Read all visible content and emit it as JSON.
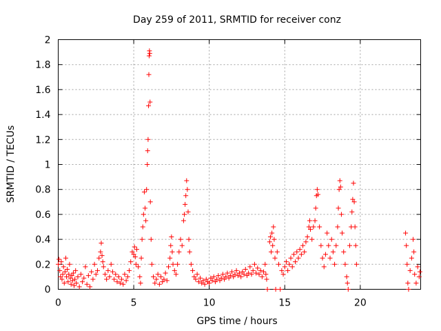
{
  "chart_data": {
    "type": "scatter",
    "title": "Day 259 of 2011, SRMTID for receiver conz",
    "xlabel": "GPS time / hours",
    "ylabel": "SRMTID / TECUs",
    "xlim": [
      0,
      24
    ],
    "ylim": [
      0,
      2
    ],
    "xticks": [
      0,
      5,
      10,
      15,
      20
    ],
    "xtick_labels": [
      "0",
      "5",
      "10",
      "15",
      "20"
    ],
    "yticks": [
      0,
      0.2,
      0.4,
      0.6,
      0.8,
      1,
      1.2,
      1.4,
      1.6,
      1.8,
      2
    ],
    "ytick_labels": [
      "0",
      "0.2",
      "0.4",
      "0.6",
      "0.8",
      "1",
      "1.2",
      "1.4",
      "1.6",
      "1.8",
      "2"
    ],
    "grid": true,
    "marker": "+",
    "color": "#ff0000",
    "series": [
      {
        "name": "SRMTID",
        "points": [
          [
            0.0,
            0.2
          ],
          [
            0.05,
            0.24
          ],
          [
            0.1,
            0.15
          ],
          [
            0.15,
            0.1
          ],
          [
            0.2,
            0.22
          ],
          [
            0.25,
            0.08
          ],
          [
            0.3,
            0.12
          ],
          [
            0.35,
            0.18
          ],
          [
            0.4,
            0.05
          ],
          [
            0.45,
            0.14
          ],
          [
            0.5,
            0.25
          ],
          [
            0.55,
            0.1
          ],
          [
            0.6,
            0.16
          ],
          [
            0.65,
            0.06
          ],
          [
            0.7,
            0.12
          ],
          [
            0.75,
            0.2
          ],
          [
            0.8,
            0.09
          ],
          [
            0.85,
            0.04
          ],
          [
            0.9,
            0.11
          ],
          [
            0.95,
            0.07
          ],
          [
            1.0,
            0.13
          ],
          [
            1.05,
            0.03
          ],
          [
            1.1,
            0.08
          ],
          [
            1.15,
            0.15
          ],
          [
            1.2,
            0.05
          ],
          [
            1.3,
            0.1
          ],
          [
            1.4,
            0.02
          ],
          [
            1.5,
            0.12
          ],
          [
            1.6,
            0.06
          ],
          [
            1.7,
            0.09
          ],
          [
            1.8,
            0.18
          ],
          [
            1.9,
            0.04
          ],
          [
            2.0,
            0.11
          ],
          [
            2.1,
            0.02
          ],
          [
            2.2,
            0.14
          ],
          [
            2.3,
            0.08
          ],
          [
            2.4,
            0.2
          ],
          [
            2.5,
            0.12
          ],
          [
            2.6,
            0.15
          ],
          [
            2.7,
            0.25
          ],
          [
            2.8,
            0.3
          ],
          [
            2.85,
            0.37
          ],
          [
            2.9,
            0.27
          ],
          [
            2.95,
            0.22
          ],
          [
            3.0,
            0.18
          ],
          [
            3.1,
            0.12
          ],
          [
            3.2,
            0.08
          ],
          [
            3.3,
            0.15
          ],
          [
            3.4,
            0.1
          ],
          [
            3.5,
            0.2
          ],
          [
            3.6,
            0.14
          ],
          [
            3.7,
            0.08
          ],
          [
            3.8,
            0.12
          ],
          [
            3.9,
            0.06
          ],
          [
            4.0,
            0.1
          ],
          [
            4.1,
            0.05
          ],
          [
            4.2,
            0.08
          ],
          [
            4.3,
            0.04
          ],
          [
            4.4,
            0.12
          ],
          [
            4.5,
            0.07
          ],
          [
            4.6,
            0.1
          ],
          [
            4.7,
            0.15
          ],
          [
            4.8,
            0.22
          ],
          [
            4.9,
            0.3
          ],
          [
            5.0,
            0.28
          ],
          [
            5.05,
            0.34
          ],
          [
            5.1,
            0.26
          ],
          [
            5.15,
            0.2
          ],
          [
            5.2,
            0.32
          ],
          [
            5.3,
            0.18
          ],
          [
            5.4,
            0.1
          ],
          [
            5.45,
            0.05
          ],
          [
            5.5,
            0.25
          ],
          [
            5.55,
            0.4
          ],
          [
            5.6,
            0.5
          ],
          [
            5.65,
            0.6
          ],
          [
            5.7,
            0.78
          ],
          [
            5.75,
            0.65
          ],
          [
            5.8,
            0.55
          ],
          [
            5.85,
            0.8
          ],
          [
            5.9,
            1.0
          ],
          [
            5.92,
            1.11
          ],
          [
            5.95,
            1.2
          ],
          [
            5.98,
            1.47
          ],
          [
            6.0,
            1.72
          ],
          [
            6.02,
            1.87
          ],
          [
            6.04,
            1.91
          ],
          [
            6.06,
            1.89
          ],
          [
            6.08,
            1.5
          ],
          [
            6.1,
            0.7
          ],
          [
            6.15,
            0.4
          ],
          [
            6.2,
            0.2
          ],
          [
            6.3,
            0.1
          ],
          [
            6.4,
            0.05
          ],
          [
            6.5,
            0.08
          ],
          [
            6.6,
            0.12
          ],
          [
            6.7,
            0.04
          ],
          [
            6.8,
            0.1
          ],
          [
            6.9,
            0.06
          ],
          [
            7.0,
            0.08
          ],
          [
            7.1,
            0.13
          ],
          [
            7.2,
            0.07
          ],
          [
            7.3,
            0.18
          ],
          [
            7.4,
            0.25
          ],
          [
            7.45,
            0.35
          ],
          [
            7.5,
            0.42
          ],
          [
            7.55,
            0.3
          ],
          [
            7.6,
            0.2
          ],
          [
            7.7,
            0.15
          ],
          [
            7.8,
            0.12
          ],
          [
            7.9,
            0.2
          ],
          [
            8.0,
            0.3
          ],
          [
            8.1,
            0.4
          ],
          [
            8.2,
            0.35
          ],
          [
            8.3,
            0.55
          ],
          [
            8.35,
            0.6
          ],
          [
            8.4,
            0.68
          ],
          [
            8.45,
            0.75
          ],
          [
            8.5,
            0.87
          ],
          [
            8.55,
            0.8
          ],
          [
            8.6,
            0.62
          ],
          [
            8.65,
            0.4
          ],
          [
            8.7,
            0.3
          ],
          [
            8.8,
            0.2
          ],
          [
            8.9,
            0.15
          ],
          [
            9.0,
            0.1
          ],
          [
            9.1,
            0.08
          ],
          [
            9.2,
            0.12
          ],
          [
            9.3,
            0.06
          ],
          [
            9.4,
            0.09
          ],
          [
            9.5,
            0.05
          ],
          [
            9.6,
            0.07
          ],
          [
            9.7,
            0.04
          ],
          [
            9.8,
            0.08
          ],
          [
            9.9,
            0.06
          ],
          [
            10.0,
            0.05
          ],
          [
            10.1,
            0.09
          ],
          [
            10.2,
            0.07
          ],
          [
            10.3,
            0.1
          ],
          [
            10.4,
            0.06
          ],
          [
            10.5,
            0.08
          ],
          [
            10.6,
            0.11
          ],
          [
            10.7,
            0.07
          ],
          [
            10.8,
            0.09
          ],
          [
            10.9,
            0.12
          ],
          [
            11.0,
            0.08
          ],
          [
            11.1,
            0.1
          ],
          [
            11.2,
            0.13
          ],
          [
            11.3,
            0.09
          ],
          [
            11.4,
            0.11
          ],
          [
            11.5,
            0.14
          ],
          [
            11.6,
            0.1
          ],
          [
            11.7,
            0.12
          ],
          [
            11.8,
            0.15
          ],
          [
            11.9,
            0.11
          ],
          [
            12.0,
            0.13
          ],
          [
            12.1,
            0.1
          ],
          [
            12.2,
            0.14
          ],
          [
            12.3,
            0.12
          ],
          [
            12.4,
            0.16
          ],
          [
            12.5,
            0.11
          ],
          [
            12.6,
            0.13
          ],
          [
            12.7,
            0.18
          ],
          [
            12.8,
            0.12
          ],
          [
            12.9,
            0.15
          ],
          [
            13.0,
            0.2
          ],
          [
            13.1,
            0.13
          ],
          [
            13.2,
            0.17
          ],
          [
            13.3,
            0.12
          ],
          [
            13.4,
            0.15
          ],
          [
            13.5,
            0.1
          ],
          [
            13.6,
            0.14
          ],
          [
            13.7,
            0.2
          ],
          [
            13.75,
            0.12
          ],
          [
            13.8,
            0.08
          ],
          [
            13.85,
            0.0
          ],
          [
            14.0,
            0.38
          ],
          [
            14.05,
            0.42
          ],
          [
            14.1,
            0.3
          ],
          [
            14.15,
            0.45
          ],
          [
            14.2,
            0.35
          ],
          [
            14.25,
            0.5
          ],
          [
            14.3,
            0.4
          ],
          [
            14.35,
            0.25
          ],
          [
            14.4,
            0.0
          ],
          [
            14.5,
            0.3
          ],
          [
            14.6,
            0.2
          ],
          [
            14.7,
            0.0
          ],
          [
            14.8,
            0.15
          ],
          [
            14.9,
            0.12
          ],
          [
            15.0,
            0.18
          ],
          [
            15.1,
            0.22
          ],
          [
            15.2,
            0.15
          ],
          [
            15.3,
            0.2
          ],
          [
            15.4,
            0.25
          ],
          [
            15.5,
            0.18
          ],
          [
            15.6,
            0.28
          ],
          [
            15.7,
            0.22
          ],
          [
            15.8,
            0.3
          ],
          [
            15.9,
            0.25
          ],
          [
            16.0,
            0.32
          ],
          [
            16.1,
            0.28
          ],
          [
            16.2,
            0.35
          ],
          [
            16.3,
            0.3
          ],
          [
            16.4,
            0.38
          ],
          [
            16.5,
            0.42
          ],
          [
            16.6,
            0.5
          ],
          [
            16.65,
            0.55
          ],
          [
            16.7,
            0.48
          ],
          [
            16.8,
            0.4
          ],
          [
            16.9,
            0.5
          ],
          [
            17.0,
            0.55
          ],
          [
            17.05,
            0.65
          ],
          [
            17.1,
            0.75
          ],
          [
            17.15,
            0.8
          ],
          [
            17.2,
            0.76
          ],
          [
            17.3,
            0.5
          ],
          [
            17.4,
            0.35
          ],
          [
            17.5,
            0.25
          ],
          [
            17.6,
            0.18
          ],
          [
            17.7,
            0.28
          ],
          [
            17.8,
            0.45
          ],
          [
            17.9,
            0.35
          ],
          [
            18.0,
            0.25
          ],
          [
            18.1,
            0.4
          ],
          [
            18.2,
            0.3
          ],
          [
            18.3,
            0.2
          ],
          [
            18.4,
            0.35
          ],
          [
            18.5,
            0.5
          ],
          [
            18.55,
            0.65
          ],
          [
            18.6,
            0.8
          ],
          [
            18.65,
            0.87
          ],
          [
            18.7,
            0.82
          ],
          [
            18.75,
            0.6
          ],
          [
            18.8,
            0.45
          ],
          [
            18.9,
            0.3
          ],
          [
            19.0,
            0.2
          ],
          [
            19.1,
            0.1
          ],
          [
            19.15,
            0.05
          ],
          [
            19.2,
            0.0
          ],
          [
            19.3,
            0.35
          ],
          [
            19.4,
            0.5
          ],
          [
            19.45,
            0.62
          ],
          [
            19.5,
            0.72
          ],
          [
            19.55,
            0.85
          ],
          [
            19.6,
            0.7
          ],
          [
            19.65,
            0.5
          ],
          [
            19.7,
            0.35
          ],
          [
            19.75,
            0.2
          ],
          [
            23.0,
            0.45
          ],
          [
            23.05,
            0.35
          ],
          [
            23.1,
            0.2
          ],
          [
            23.15,
            0.05
          ],
          [
            23.2,
            0.0
          ],
          [
            23.3,
            0.15
          ],
          [
            23.4,
            0.25
          ],
          [
            23.5,
            0.4
          ],
          [
            23.55,
            0.3
          ],
          [
            23.6,
            0.12
          ],
          [
            23.7,
            0.05
          ],
          [
            23.8,
            0.18
          ],
          [
            23.9,
            0.1
          ],
          [
            23.95,
            0.14
          ]
        ]
      }
    ]
  }
}
